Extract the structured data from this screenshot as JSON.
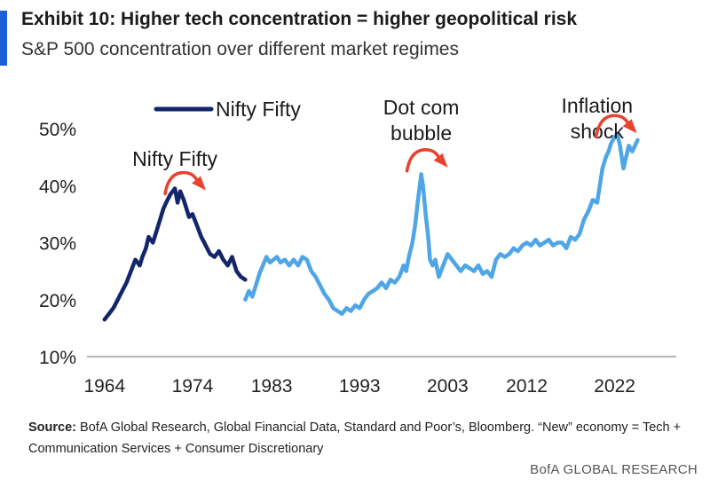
{
  "header": {
    "title": "Exhibit 10: Higher tech concentration = higher geopolitical risk",
    "subtitle": "S&P 500 concentration over different market regimes"
  },
  "source": {
    "label": "Source:",
    "text": "BofA Global Research, Global Financial Data, Standard and Poor’s, Bloomberg. “New” economy = Tech + Communication Services + Consumer Discretionary"
  },
  "footer": {
    "brand": "BofA GLOBAL RESEARCH"
  },
  "colors": {
    "nifty": "#14266b",
    "modern": "#4ea6e6",
    "arrow": "#e8432f",
    "accent": "#1f5fd6"
  },
  "chart_data": {
    "type": "line",
    "title": "Exhibit 10: Higher tech concentration = higher geopolitical risk",
    "subtitle": "S&P 500 concentration over different market regimes",
    "xlabel": "",
    "ylabel": "",
    "xlim": [
      1962,
      2029
    ],
    "ylim": [
      10,
      50
    ],
    "xticks": [
      1964,
      1974,
      1983,
      1993,
      2003,
      2012,
      2022
    ],
    "yticks": [
      10,
      20,
      30,
      40,
      50
    ],
    "ytick_format": "percent",
    "legend": {
      "position": "top-left",
      "entries": [
        "Nifty Fifty"
      ]
    },
    "grid": false,
    "annotations": [
      {
        "text": "Nifty Fifty",
        "x": 1972,
        "y": 43.5
      },
      {
        "text": "Dot com",
        "x": 2000,
        "y": 52.5
      },
      {
        "text": "bubble",
        "x": 2000,
        "y": 48
      },
      {
        "text": "Inflation",
        "x": 2020,
        "y": 52.8
      },
      {
        "text": "shock",
        "x": 2020,
        "y": 48.3
      }
    ],
    "series": [
      {
        "name": "Nifty Fifty",
        "x": [
          1964.0,
          1964.5,
          1965.0,
          1965.5,
          1966.0,
          1966.5,
          1967.0,
          1967.5,
          1968.0,
          1968.3,
          1968.7,
          1969.0,
          1969.5,
          1970.0,
          1970.3,
          1970.7,
          1971.0,
          1971.5,
          1972.0,
          1972.3,
          1972.6,
          1973.0,
          1973.3,
          1973.6,
          1974.0,
          1974.5,
          1975.0,
          1975.5,
          1976.0,
          1976.5,
          1977.0,
          1977.5,
          1978.0,
          1978.5,
          1979.0,
          1979.5,
          1980.0
        ],
        "values": [
          16.5,
          17.5,
          18.5,
          20.0,
          21.5,
          23.0,
          25.0,
          27.0,
          26.0,
          27.5,
          29.0,
          31.0,
          30.0,
          32.5,
          34.0,
          36.0,
          37.0,
          38.5,
          39.5,
          37.0,
          39.0,
          37.5,
          36.0,
          34.5,
          35.0,
          33.0,
          31.0,
          29.5,
          28.0,
          27.5,
          28.5,
          27.0,
          26.0,
          27.5,
          25.0,
          24.0,
          23.5
        ]
      },
      {
        "name": "S&P 500 concentration",
        "x": [
          1980.0,
          1980.4,
          1980.8,
          1981.2,
          1981.6,
          1982.0,
          1982.4,
          1982.8,
          1983.2,
          1983.6,
          1984.0,
          1984.5,
          1985.0,
          1985.5,
          1986.0,
          1986.5,
          1987.0,
          1987.5,
          1988.0,
          1988.5,
          1989.0,
          1989.5,
          1990.0,
          1990.5,
          1991.0,
          1991.5,
          1992.0,
          1992.5,
          1993.0,
          1993.5,
          1994.0,
          1994.5,
          1995.0,
          1995.5,
          1996.0,
          1996.5,
          1997.0,
          1997.5,
          1998.0,
          1998.3,
          1998.6,
          1999.0,
          1999.3,
          1999.6,
          2000.0,
          2000.2,
          2000.5,
          2000.8,
          2001.0,
          2001.3,
          2001.6,
          2002.0,
          2002.5,
          2003.0,
          2003.5,
          2004.0,
          2004.5,
          2005.0,
          2005.5,
          2006.0,
          2006.5,
          2007.0,
          2007.5,
          2008.0,
          2008.5,
          2009.0,
          2009.5,
          2010.0,
          2010.5,
          2011.0,
          2011.5,
          2012.0,
          2012.5,
          2013.0,
          2013.5,
          2014.0,
          2014.5,
          2015.0,
          2015.5,
          2016.0,
          2016.5,
          2017.0,
          2017.5,
          2018.0,
          2018.5,
          2019.0,
          2019.5,
          2020.0,
          2020.3,
          2020.6,
          2021.0,
          2021.3,
          2021.6,
          2022.0,
          2022.3,
          2022.6,
          2023.0,
          2023.3,
          2023.6,
          2024.0,
          2024.3,
          2024.6
        ],
        "values": [
          20.0,
          21.5,
          20.5,
          22.5,
          24.5,
          26.0,
          27.5,
          26.5,
          27.0,
          27.5,
          26.5,
          27.0,
          26.0,
          27.0,
          26.0,
          27.5,
          27.0,
          25.0,
          24.0,
          22.5,
          21.0,
          20.0,
          18.5,
          18.0,
          17.5,
          18.5,
          18.0,
          19.0,
          18.5,
          20.0,
          21.0,
          21.5,
          22.0,
          23.0,
          22.0,
          23.5,
          23.0,
          24.0,
          26.0,
          25.0,
          27.5,
          30.0,
          33.0,
          37.0,
          42.0,
          40.0,
          35.0,
          31.0,
          27.0,
          26.0,
          27.0,
          24.0,
          26.0,
          28.0,
          27.0,
          26.0,
          25.0,
          26.0,
          25.5,
          25.0,
          26.0,
          24.5,
          25.0,
          24.0,
          27.0,
          28.0,
          27.5,
          28.0,
          29.0,
          28.5,
          29.5,
          30.0,
          29.5,
          30.5,
          29.5,
          30.0,
          30.5,
          29.5,
          30.0,
          30.0,
          29.0,
          31.0,
          30.5,
          31.5,
          34.0,
          35.5,
          37.5,
          37.0,
          40.0,
          43.0,
          45.0,
          46.0,
          47.5,
          48.5,
          49.0,
          47.0,
          43.0,
          45.0,
          47.0,
          46.0,
          47.0,
          48.0
        ]
      }
    ]
  }
}
